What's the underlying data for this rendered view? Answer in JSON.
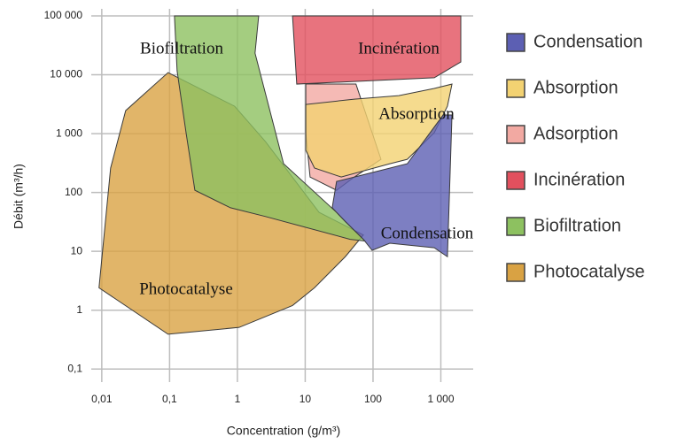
{
  "chart_data": {
    "type": "region",
    "x_label": "Concentration (g/m³)",
    "y_label": "Débit (m³/h)",
    "log_x": true,
    "log_y": true,
    "grid": true,
    "legend": "right",
    "xlim": [
      0.007,
      3000
    ],
    "ylim": [
      0.06,
      100000
    ],
    "xticks": [
      {
        "value": 0.01,
        "label": "0,01"
      },
      {
        "value": 0.1,
        "label": "0,1"
      },
      1,
      10,
      100,
      {
        "value": 1000,
        "label": "1 000"
      }
    ],
    "yticks": [
      {
        "value": 0.1,
        "label": "0,1"
      },
      1,
      10,
      100,
      {
        "value": 1000,
        "label": "1 000"
      },
      {
        "value": 10000,
        "label": "10 000"
      },
      {
        "value": 100000,
        "label": "100 000"
      }
    ],
    "annotations": [
      "Biofiltration",
      "Incinération",
      "Absorption",
      "Condensation",
      "Photocatalyse"
    ],
    "series": [
      {
        "name": "Condensation",
        "color": "#5c5fb3",
        "x": [
          29,
          97,
          320,
          1080,
          1460,
          1250,
          800,
          177,
          97,
          72,
          39,
          25
        ],
        "values": [
          154,
          218,
          308,
          2070,
          2070,
          8.1,
          11.5,
          13.7,
          10.4,
          16,
          32,
          55
        ]
      },
      {
        "name": "Absorption",
        "color": "#f3d272",
        "x": [
          10.2,
          53,
          240,
          800,
          1460,
          1250,
          800,
          320,
          177,
          34,
          13.7,
          10.2
        ],
        "values": [
          3130,
          3850,
          4430,
          5850,
          6950,
          2920,
          1035,
          366,
          308,
          183,
          260,
          520
        ]
      },
      {
        "name": "Adsorption",
        "color": "#f2a9a2",
        "x": [
          10.2,
          56,
          131,
          53,
          29,
          11.8,
          10.2
        ],
        "values": [
          6950,
          6950,
          366,
          183,
          109,
          183,
          1035
        ]
      },
      {
        "name": "Incinération",
        "color": "#e2505e",
        "x": [
          6.5,
          1970,
          1970,
          800,
          53,
          7.5
        ],
        "values": [
          100000,
          100000,
          16500,
          8900,
          7700,
          6950
        ]
      },
      {
        "name": "Biofiltration",
        "color": "#8dc160",
        "x": [
          0.118,
          2.06,
          1.82,
          4.8,
          29,
          76,
          46,
          2.6,
          0.79,
          0.236,
          0.175,
          0.129
        ],
        "values": [
          100000,
          100000,
          23300,
          308,
          46,
          15,
          16,
          39,
          55,
          109,
          1035,
          11700
        ]
      },
      {
        "name": "Photocatalyse",
        "color": "#d9a243",
        "x": [
          0.0091,
          0.0135,
          0.0225,
          0.095,
          0.91,
          2.6,
          16,
          72,
          39,
          13.7,
          6.5,
          1.06,
          0.095
        ],
        "values": [
          2.4,
          260,
          2460,
          10900,
          2920,
          730,
          46,
          19,
          8.1,
          2.4,
          1.2,
          0.51,
          0.39
        ]
      }
    ]
  }
}
